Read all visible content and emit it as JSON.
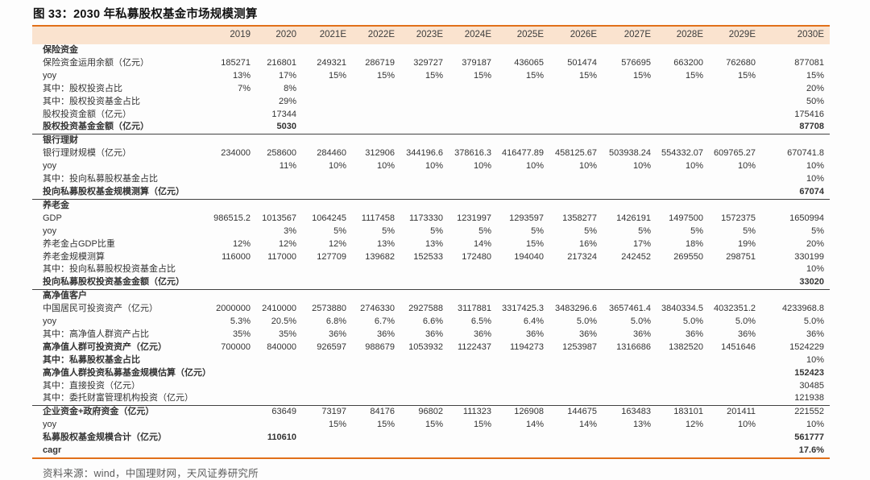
{
  "figure": {
    "title": "图 33：2030 年私募股权基金市场规模测算",
    "source": "资料来源：wind，中国理财网，天风证券研究所"
  },
  "colors": {
    "accent_orange": "#e1701a",
    "header_band": "#fae3cf",
    "divider_dark": "#414141",
    "body_text": "#333333",
    "source_text": "#5c5c5c"
  },
  "chart_data": {
    "type": "table",
    "title": "图 33：2030 年私募股权基金市场规模测算",
    "columns": [
      "2019",
      "2020",
      "2021E",
      "2022E",
      "2023E",
      "2024E",
      "2025E",
      "2026E",
      "2027E",
      "2028E",
      "2029E",
      "2030E"
    ],
    "rows": [
      {
        "label": "保险资金",
        "type": "section",
        "values": [
          "",
          "",
          "",
          "",
          "",
          "",
          "",
          "",
          "",
          "",
          "",
          ""
        ]
      },
      {
        "label": "保险资金运用余额（亿元）",
        "type": "data",
        "values": [
          "185271",
          "216801",
          "249321",
          "286719",
          "329727",
          "379187",
          "436065",
          "501474",
          "576695",
          "663200",
          "762680",
          "877081"
        ]
      },
      {
        "label": "yoy",
        "type": "data",
        "values": [
          "13%",
          "17%",
          "15%",
          "15%",
          "15%",
          "15%",
          "15%",
          "15%",
          "15%",
          "15%",
          "15%",
          "15%"
        ]
      },
      {
        "label": "其中：股权投资占比",
        "type": "data",
        "values": [
          "7%",
          "8%",
          "",
          "",
          "",
          "",
          "",
          "",
          "",
          "",
          "",
          "20%"
        ]
      },
      {
        "label": "其中：股权投资基金占比",
        "type": "data",
        "values": [
          "",
          "29%",
          "",
          "",
          "",
          "",
          "",
          "",
          "",
          "",
          "",
          "50%"
        ]
      },
      {
        "label": "股权投资金额（亿元）",
        "type": "data",
        "values": [
          "",
          "17344",
          "",
          "",
          "",
          "",
          "",
          "",
          "",
          "",
          "",
          "175416"
        ]
      },
      {
        "label": "股权投资基金金额（亿元）",
        "type": "data",
        "bold": true,
        "bold_values": true,
        "divider": true,
        "values": [
          "",
          "5030",
          "",
          "",
          "",
          "",
          "",
          "",
          "",
          "",
          "",
          "87708"
        ]
      },
      {
        "label": "银行理财",
        "type": "section",
        "values": [
          "",
          "",
          "",
          "",
          "",
          "",
          "",
          "",
          "",
          "",
          "",
          ""
        ]
      },
      {
        "label": "银行理财规模（亿元）",
        "type": "data",
        "values": [
          "234000",
          "258600",
          "284460",
          "312906",
          "344196.6",
          "378616.3",
          "416477.89",
          "458125.67",
          "503938.24",
          "554332.07",
          "609765.27",
          "670741.8"
        ]
      },
      {
        "label": "yoy",
        "type": "data",
        "values": [
          "",
          "11%",
          "10%",
          "10%",
          "10%",
          "10%",
          "10%",
          "10%",
          "10%",
          "10%",
          "10%",
          "10%"
        ]
      },
      {
        "label": "其中：投向私募股权基金占比",
        "type": "data",
        "values": [
          "",
          "",
          "",
          "",
          "",
          "",
          "",
          "",
          "",
          "",
          "",
          "10%"
        ]
      },
      {
        "label": "投向私募股权基金规模测算（亿元）",
        "type": "data",
        "bold": true,
        "bold_values": true,
        "divider": true,
        "values": [
          "",
          "",
          "",
          "",
          "",
          "",
          "",
          "",
          "",
          "",
          "",
          "67074"
        ]
      },
      {
        "label": "养老金",
        "type": "section",
        "values": [
          "",
          "",
          "",
          "",
          "",
          "",
          "",
          "",
          "",
          "",
          "",
          ""
        ]
      },
      {
        "label": "GDP",
        "type": "data",
        "values": [
          "986515.2",
          "1013567",
          "1064245",
          "1117458",
          "1173330",
          "1231997",
          "1293597",
          "1358277",
          "1426191",
          "1497500",
          "1572375",
          "1650994"
        ]
      },
      {
        "label": "yoy",
        "type": "data",
        "values": [
          "",
          "3%",
          "5%",
          "5%",
          "5%",
          "5%",
          "5%",
          "5%",
          "5%",
          "5%",
          "5%",
          "5%"
        ]
      },
      {
        "label": "养老金占GDP比重",
        "type": "data",
        "values": [
          "12%",
          "12%",
          "12%",
          "13%",
          "13%",
          "14%",
          "15%",
          "16%",
          "17%",
          "18%",
          "19%",
          "20%"
        ]
      },
      {
        "label": "养老金规模测算",
        "type": "data",
        "values": [
          "116000",
          "117000",
          "127709",
          "139682",
          "152533",
          "172480",
          "194040",
          "217324",
          "242452",
          "269550",
          "298751",
          "330199"
        ]
      },
      {
        "label": "其中：投向私募股权投资基金占比",
        "type": "data",
        "values": [
          "",
          "",
          "",
          "",
          "",
          "",
          "",
          "",
          "",
          "",
          "",
          "10%"
        ]
      },
      {
        "label": "投向私募股权投资基金金额（亿元）",
        "type": "data",
        "bold": true,
        "bold_values": true,
        "divider": true,
        "values": [
          "",
          "",
          "",
          "",
          "",
          "",
          "",
          "",
          "",
          "",
          "",
          "33020"
        ]
      },
      {
        "label": "高净值客户",
        "type": "section",
        "values": [
          "",
          "",
          "",
          "",
          "",
          "",
          "",
          "",
          "",
          "",
          "",
          ""
        ]
      },
      {
        "label": "中国居民可投资资产（亿元）",
        "type": "data",
        "values": [
          "2000000",
          "2410000",
          "2573880",
          "2746330",
          "2927588",
          "3117881",
          "3317425.3",
          "3483296.6",
          "3657461.4",
          "3840334.5",
          "4032351.2",
          "4233968.8"
        ]
      },
      {
        "label": "yoy",
        "type": "data",
        "values": [
          "5.3%",
          "20.5%",
          "6.8%",
          "6.7%",
          "6.6%",
          "6.5%",
          "6.4%",
          "5.0%",
          "5.0%",
          "5.0%",
          "5.0%",
          "5.0%"
        ]
      },
      {
        "label": "其中：高净值人群资产占比",
        "type": "data",
        "values": [
          "35%",
          "35%",
          "36%",
          "36%",
          "36%",
          "36%",
          "36%",
          "36%",
          "36%",
          "36%",
          "36%",
          "36%"
        ]
      },
      {
        "label": "高净值人群可投资资产（亿元）",
        "type": "data",
        "bold": true,
        "values": [
          "700000",
          "840000",
          "926597",
          "988679",
          "1053932",
          "1122437",
          "1194273",
          "1253987",
          "1316686",
          "1382520",
          "1451646",
          "1524229"
        ]
      },
      {
        "label": "其中：私募股权基金占比",
        "type": "data",
        "bold": true,
        "values": [
          "",
          "",
          "",
          "",
          "",
          "",
          "",
          "",
          "",
          "",
          "",
          "10%"
        ]
      },
      {
        "label": "高净值人群投资私募基金规模估算（亿元）",
        "type": "data",
        "bold": true,
        "bold_values": true,
        "values": [
          "",
          "",
          "",
          "",
          "",
          "",
          "",
          "",
          "",
          "",
          "",
          "152423"
        ]
      },
      {
        "label": "其中：直接投资（亿元）",
        "type": "data",
        "values": [
          "",
          "",
          "",
          "",
          "",
          "",
          "",
          "",
          "",
          "",
          "",
          "30485"
        ]
      },
      {
        "label": "其中：委托财富管理机构投资（亿元）",
        "type": "data",
        "divider": true,
        "values": [
          "",
          "",
          "",
          "",
          "",
          "",
          "",
          "",
          "",
          "",
          "",
          "121938"
        ]
      },
      {
        "label": "企业资金+政府资金（亿元）",
        "type": "data",
        "bold": true,
        "values": [
          "",
          "63649",
          "73197",
          "84176",
          "96802",
          "111323",
          "126908",
          "144675",
          "163483",
          "183101",
          "201411",
          "221552"
        ]
      },
      {
        "label": "yoy",
        "type": "data",
        "values": [
          "",
          "",
          "15%",
          "15%",
          "15%",
          "15%",
          "14%",
          "14%",
          "13%",
          "12%",
          "10%",
          "10%"
        ]
      },
      {
        "label": "私募股权基金规模合计（亿元）",
        "type": "data",
        "bold": true,
        "bold_values": true,
        "values": [
          "",
          "110610",
          "",
          "",
          "",
          "",
          "",
          "",
          "",
          "",
          "",
          "561777"
        ]
      },
      {
        "label": "cagr",
        "type": "data",
        "bold": true,
        "bold_values": true,
        "values": [
          "",
          "",
          "",
          "",
          "",
          "",
          "",
          "",
          "",
          "",
          "",
          "17.6%"
        ]
      }
    ]
  }
}
